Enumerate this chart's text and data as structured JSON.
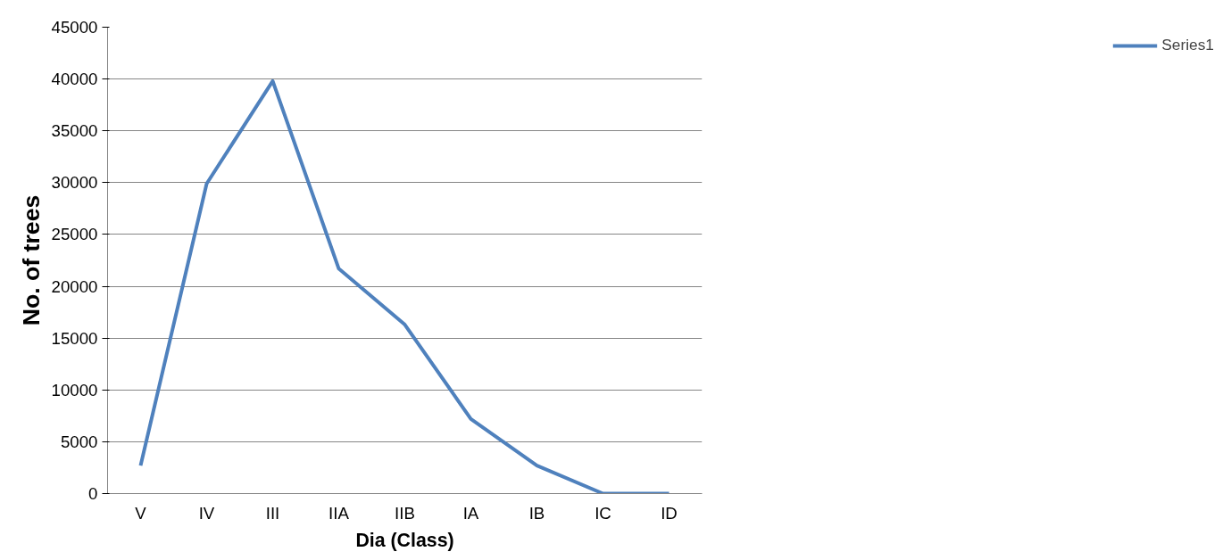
{
  "chart_data": {
    "type": "line",
    "xlabel": "Dia (Class)",
    "ylabel": "No. of trees",
    "categories": [
      "V",
      "IV",
      "III",
      "IIA",
      "IIB",
      "IA",
      "IB",
      "IC",
      "ID"
    ],
    "series": [
      {
        "name": "Series1",
        "color": "#4f81bd",
        "values": [
          2700,
          29900,
          39800,
          21700,
          16300,
          7200,
          2700,
          0,
          0
        ]
      }
    ],
    "ylim": [
      0,
      45000
    ],
    "yticks": [
      0,
      5000,
      10000,
      15000,
      20000,
      25000,
      30000,
      35000,
      40000,
      45000
    ],
    "grid": "y",
    "legend": "right",
    "marker": "none",
    "line_style": "solid"
  }
}
